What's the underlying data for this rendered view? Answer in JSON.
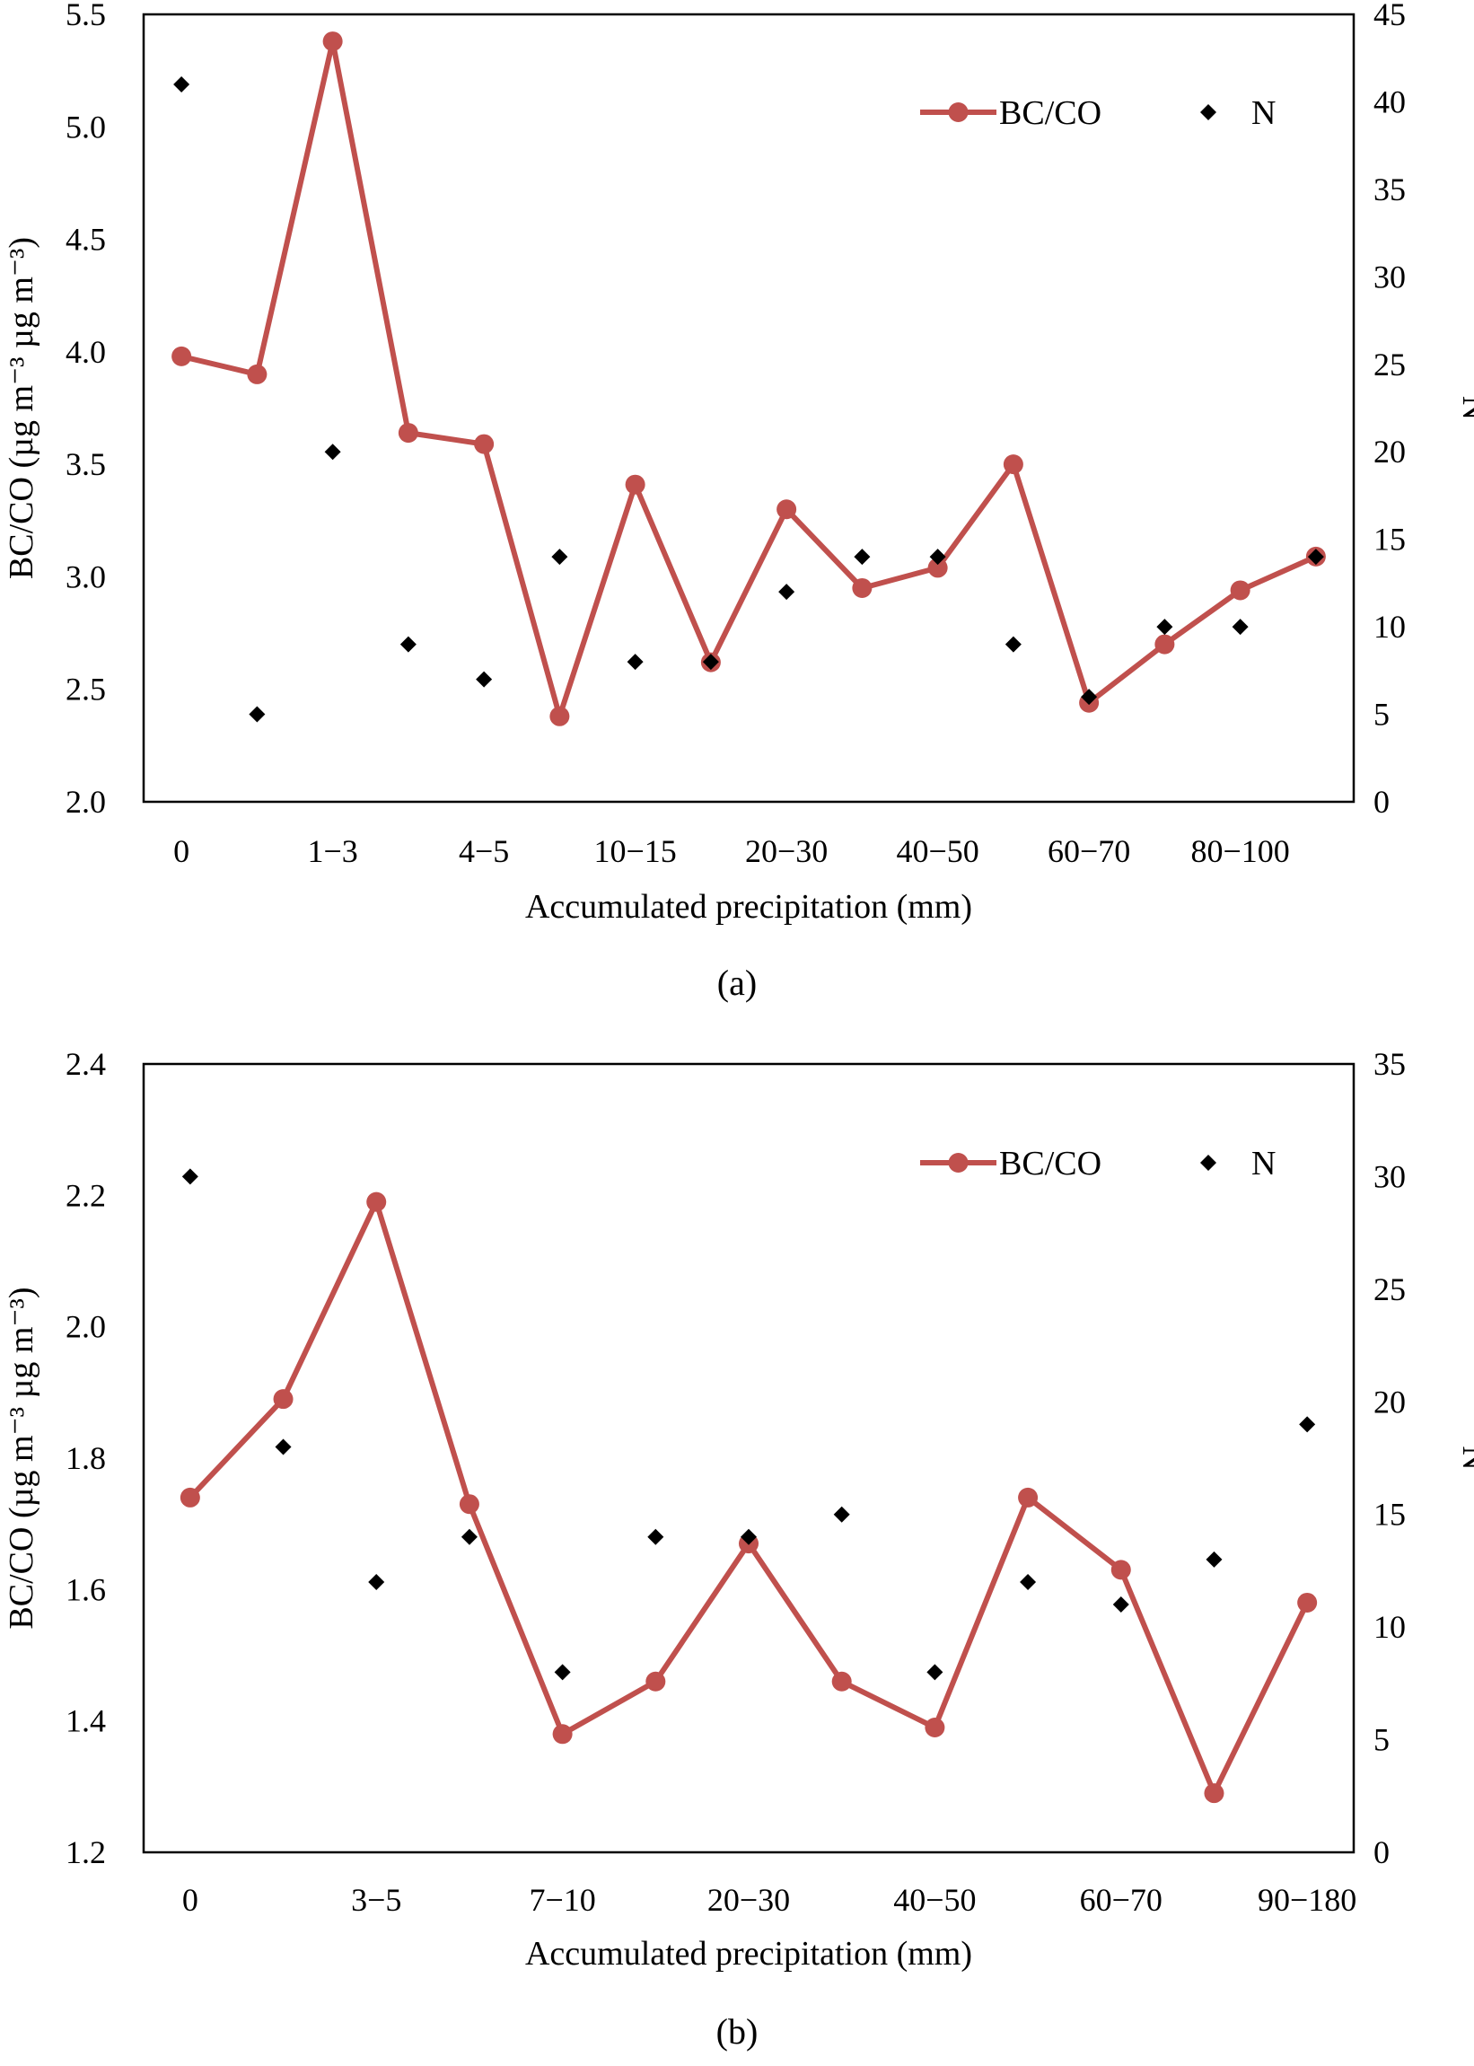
{
  "colors": {
    "bc_co": "#c0504d",
    "n": "#000000",
    "axis": "#000000"
  },
  "chart_data": [
    {
      "type": "line",
      "panel_label": "(a)",
      "categories": [
        "0",
        "",
        "1−3",
        "",
        "4−5",
        "",
        "10−15",
        "",
        "20−30",
        "",
        "40−50",
        "",
        "60−70",
        "",
        "80−100",
        ""
      ],
      "xlabel": "Accumulated precipitation (mm)",
      "ylabel_left": "BC/CO (µg m⁻³ µg m⁻³)",
      "ylabel_right": "N",
      "ylim_left": [
        2.0,
        5.5
      ],
      "yticks_left": [
        "2.0",
        "2.5",
        "3.0",
        "3.5",
        "4.0",
        "4.5",
        "5.0",
        "5.5"
      ],
      "ylim_right": [
        0,
        45
      ],
      "yticks_right": [
        "0",
        "5",
        "10",
        "15",
        "20",
        "25",
        "30",
        "35",
        "40",
        "45"
      ],
      "legend_position": "top-right",
      "series": [
        {
          "name": "BC/CO",
          "kind": "line",
          "axis": "left",
          "values": [
            3.98,
            3.9,
            5.38,
            3.64,
            3.59,
            2.38,
            3.41,
            2.62,
            3.3,
            2.95,
            3.04,
            3.5,
            2.44,
            2.7,
            2.94,
            3.09
          ]
        },
        {
          "name": "N",
          "kind": "scatter",
          "axis": "right",
          "values": [
            41,
            5,
            20,
            9,
            7,
            14,
            8,
            8,
            12,
            14,
            14,
            9,
            6,
            10,
            10,
            14
          ]
        }
      ]
    },
    {
      "type": "line",
      "panel_label": "(b)",
      "categories": [
        "0",
        "",
        "3−5",
        "",
        "7−10",
        "",
        "20−30",
        "",
        "40−50",
        "",
        "60−70",
        "",
        "90−180"
      ],
      "xlabel": "Accumulated precipitation (mm)",
      "ylabel_left": "BC/CO (µg m⁻³ µg m⁻³)",
      "ylabel_right": "N",
      "ylim_left": [
        1.2,
        2.4
      ],
      "yticks_left": [
        "1.2",
        "1.4",
        "1.6",
        "1.8",
        "2.0",
        "2.2",
        "2.4"
      ],
      "ylim_right": [
        0,
        35
      ],
      "yticks_right": [
        "0",
        "5",
        "10",
        "15",
        "20",
        "25",
        "30",
        "35"
      ],
      "legend_position": "top-right",
      "series": [
        {
          "name": "BC/CO",
          "kind": "line",
          "axis": "left",
          "values": [
            1.74,
            1.89,
            2.19,
            1.73,
            1.38,
            1.46,
            1.67,
            1.46,
            1.39,
            1.74,
            1.63,
            1.29,
            1.58
          ]
        },
        {
          "name": "N",
          "kind": "scatter",
          "axis": "right",
          "values": [
            30,
            18,
            12,
            14,
            8,
            14,
            14,
            15,
            8,
            12,
            11,
            13,
            19
          ]
        }
      ]
    }
  ]
}
